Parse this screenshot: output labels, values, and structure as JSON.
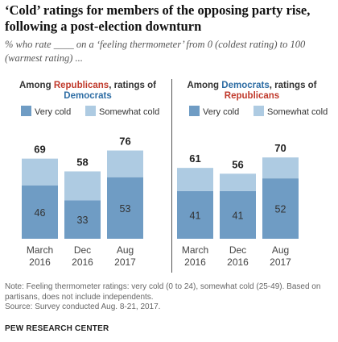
{
  "title": "‘Cold’ ratings for members of the opposing party rise, following a post-election downturn",
  "subtitle": "% who rate ____ on a ‘feeling thermometer’ from 0 (coldest rating) to 100 (warmest rating) ...",
  "colors": {
    "very_cold": "#6f9cc4",
    "somewhat_cold": "#aecbe2",
    "rep": "#c0392b",
    "dem": "#2e6da4"
  },
  "panels": [
    {
      "heading_pre": "Among ",
      "heading_group": "Republicans",
      "heading_mid": ", ratings of ",
      "heading_target": "Democrats"
    },
    {
      "heading_pre": "Among ",
      "heading_group": "Democrats",
      "heading_mid": ", ratings of ",
      "heading_target": "Republicans"
    }
  ],
  "legend": {
    "very_cold": "Very cold",
    "somewhat_cold": "Somewhat cold"
  },
  "chart_data": [
    {
      "type": "bar",
      "stacked": true,
      "title": "Among Republicans, ratings of Democrats",
      "categories": [
        "March 2016",
        "Dec 2016",
        "Aug 2017"
      ],
      "series": [
        {
          "name": "Very cold",
          "values": [
            46,
            33,
            53
          ]
        },
        {
          "name": "Somewhat cold",
          "values": [
            23,
            25,
            23
          ]
        }
      ],
      "totals": [
        69,
        58,
        76
      ]
    },
    {
      "type": "bar",
      "stacked": true,
      "title": "Among Democrats, ratings of Republicans",
      "categories": [
        "March 2016",
        "Dec 2016",
        "Aug 2017"
      ],
      "series": [
        {
          "name": "Very cold",
          "values": [
            41,
            41,
            52
          ]
        },
        {
          "name": "Somewhat cold",
          "values": [
            20,
            15,
            18
          ]
        }
      ],
      "totals": [
        61,
        56,
        70
      ]
    }
  ],
  "note": "Note: Feeling thermometer ratings: very cold (0 to 24), somewhat cold (25-49). Based on partisans, does not include independents.",
  "source_line": "Source: Survey conducted Aug. 8-21, 2017.",
  "org": "PEW RESEARCH CENTER"
}
